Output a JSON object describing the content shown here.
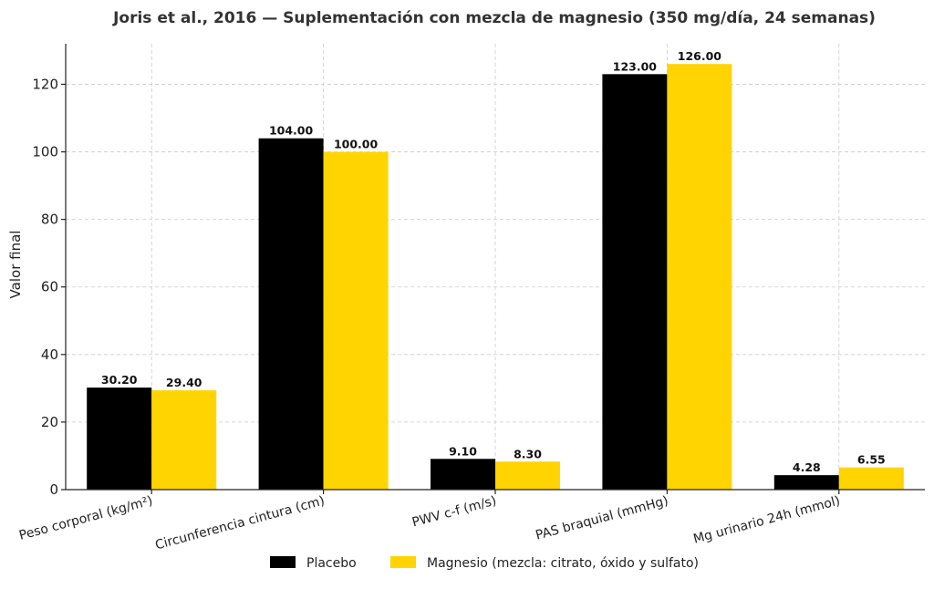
{
  "chart_data": {
    "type": "bar",
    "title": "Joris et al., 2016 — Suplementación con mezcla de magnesio (350 mg/día, 24 semanas)",
    "xlabel": "",
    "ylabel": "Valor final",
    "ylim": [
      0,
      132
    ],
    "yticks": [
      0,
      20,
      40,
      60,
      80,
      100,
      120
    ],
    "grid": true,
    "legend_position": "bottom-center",
    "categories": [
      "Peso corporal (kg/m²)",
      "Circunferencia cintura (cm)",
      "PWV c-f (m/s)",
      "PAS braquial (mmHg)",
      "Mg urinario 24h (mmol)"
    ],
    "series": [
      {
        "name": "Placebo",
        "color": "#000000",
        "values": [
          30.2,
          104.0,
          9.1,
          123.0,
          4.28
        ],
        "labels": [
          "30.20",
          "104.00",
          "9.10",
          "123.00",
          "4.28"
        ]
      },
      {
        "name": "Magnesio (mezcla: citrato, óxido y sulfato)",
        "color": "#FFD400",
        "values": [
          29.4,
          100.0,
          8.3,
          126.0,
          6.55
        ],
        "labels": [
          "29.40",
          "100.00",
          "8.30",
          "126.00",
          "6.55"
        ]
      }
    ]
  }
}
